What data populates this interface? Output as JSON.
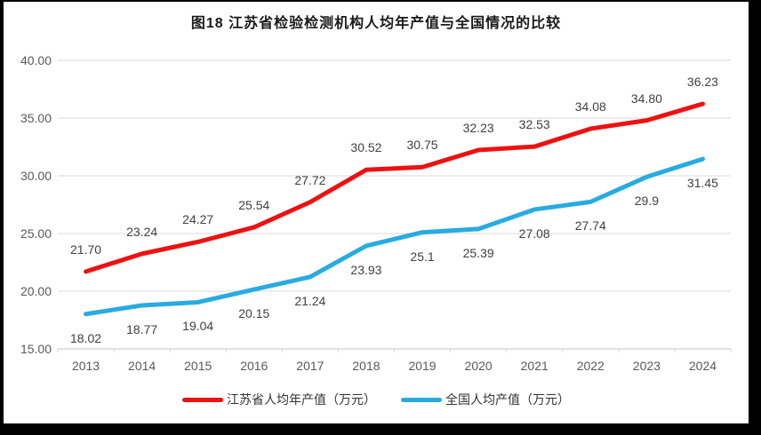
{
  "title": "图18  江苏省检验检测机构人均年产值与全国情况的比较",
  "chart_data": {
    "type": "line",
    "title": "图18  江苏省检验检测机构人均年产值与全国情况的比较",
    "categories": [
      "2013",
      "2014",
      "2015",
      "2016",
      "2017",
      "2018",
      "2019",
      "2020",
      "2021",
      "2022",
      "2023",
      "2024"
    ],
    "series": [
      {
        "name": "江苏省人均年产值（万元）",
        "color": "#ee1111",
        "values": [
          21.7,
          23.24,
          24.27,
          25.54,
          27.72,
          30.52,
          30.75,
          32.23,
          32.53,
          34.08,
          34.8,
          36.23
        ],
        "labels": [
          "21.70",
          "23.24",
          "24.27",
          "25.54",
          "27.72",
          "30.52",
          "30.75",
          "32.23",
          "32.53",
          "34.08",
          "34.80",
          "36.23"
        ],
        "label_position": "above"
      },
      {
        "name": "全国人均产值（万元）",
        "color": "#29abe2",
        "values": [
          18.02,
          18.77,
          19.04,
          20.15,
          21.24,
          23.93,
          25.1,
          25.39,
          27.08,
          27.74,
          29.9,
          31.45
        ],
        "labels": [
          "18.02",
          "18.77",
          "19.04",
          "20.15",
          "21.24",
          "23.93",
          "25.1",
          "25.39",
          "27.08",
          "27.74",
          "29.9",
          "31.45"
        ],
        "label_position": "below"
      }
    ],
    "ylim": [
      15,
      40
    ],
    "ytick_step": 5,
    "ytick_labels": [
      "40.00",
      "35.00",
      "30.00",
      "25.00",
      "20.00",
      "15.00"
    ],
    "xlabel": "",
    "ylabel": "",
    "grid": true,
    "legend_position": "bottom",
    "gridline_color": "#d9d9d9",
    "axis_text_color": "#595959",
    "data_label_color": "#404040"
  }
}
